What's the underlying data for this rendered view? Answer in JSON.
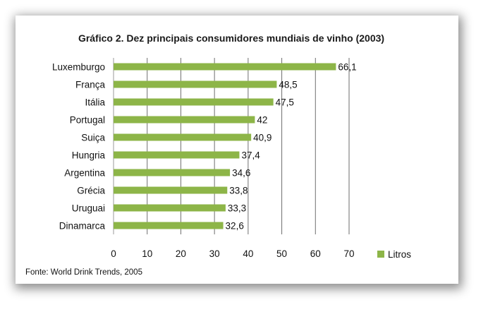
{
  "chart_data": {
    "type": "bar",
    "orientation": "horizontal",
    "title": "Gráfico 2.  Dez principais consumidores mundiais de vinho (2003)",
    "categories": [
      "Luxemburgo",
      "França",
      "Itália",
      "Portugal",
      "Suiça",
      "Hungria",
      "Argentina",
      "Grécia",
      "Uruguai",
      "Dinamarca"
    ],
    "series": [
      {
        "name": "Litros",
        "values": [
          66.1,
          48.5,
          47.5,
          42,
          40.9,
          37.4,
          34.6,
          33.8,
          33.3,
          32.6
        ],
        "labels": [
          "66,1",
          "48,5",
          "47,5",
          "42",
          "40,9",
          "37,4",
          "34,6",
          "33,8",
          "33,3",
          "32,6"
        ]
      }
    ],
    "xlim": [
      0,
      70
    ],
    "xticks": [
      0,
      10,
      20,
      30,
      40,
      50,
      60,
      70
    ],
    "grid": "vertical",
    "legend": "right",
    "bar_color": "#8db548",
    "source": "Fonte: World Drink Trends, 2005"
  }
}
